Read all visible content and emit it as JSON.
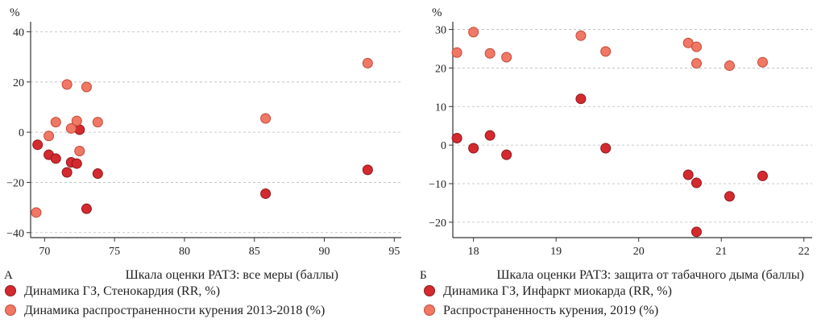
{
  "colors": {
    "dark": "#d42a2f",
    "light": "#f07864",
    "grid": "#bbbbbb"
  },
  "chart_data": [
    {
      "type": "scatter",
      "panel_label": "А",
      "ylabel": "%",
      "xlabel": "Шкала оценки РАТЗ: все меры (баллы)",
      "xlim": [
        69,
        95.5
      ],
      "ylim": [
        -42,
        44
      ],
      "xticks": [
        70,
        75,
        80,
        85,
        90,
        95
      ],
      "yticks": [
        -40,
        -20,
        0,
        20,
        40
      ],
      "series": [
        {
          "name": "Динамика ГЗ, Стенокардия (RR, %)",
          "color": "dark",
          "points": [
            [
              69.5,
              -5
            ],
            [
              70.3,
              -9
            ],
            [
              70.8,
              -10.5
            ],
            [
              71.6,
              -16
            ],
            [
              71.9,
              -12
            ],
            [
              72.3,
              -12.5
            ],
            [
              72.5,
              1
            ],
            [
              73.0,
              -30.5
            ],
            [
              73.8,
              -16.5
            ],
            [
              85.8,
              -24.5
            ],
            [
              93.1,
              -15
            ]
          ]
        },
        {
          "name": "Динамика распространенности курения 2013-2018 (%)",
          "color": "light",
          "points": [
            [
              69.4,
              -32
            ],
            [
              70.3,
              -1.5
            ],
            [
              70.8,
              4
            ],
            [
              71.6,
              19
            ],
            [
              71.9,
              1.5
            ],
            [
              72.3,
              4.5
            ],
            [
              72.5,
              -7.5
            ],
            [
              73.0,
              18
            ],
            [
              73.8,
              4
            ],
            [
              85.8,
              5.5
            ],
            [
              93.1,
              27.5
            ]
          ]
        }
      ]
    },
    {
      "type": "scatter",
      "panel_label": "Б",
      "ylabel": "%",
      "xlabel": "Шкала оценки РАТЗ: защита от табачного дыма (баллы)",
      "xlim": [
        17.75,
        22.1
      ],
      "ylim": [
        -24,
        32
      ],
      "xticks": [
        18,
        19,
        20,
        21,
        22
      ],
      "yticks": [
        -20,
        -10,
        0,
        10,
        20,
        30
      ],
      "series": [
        {
          "name": "Динамика ГЗ, Инфаркт миокарда (RR, %)",
          "color": "dark",
          "points": [
            [
              17.8,
              1.8
            ],
            [
              18.0,
              -0.8
            ],
            [
              18.2,
              2.5
            ],
            [
              18.4,
              -2.5
            ],
            [
              19.3,
              12
            ],
            [
              19.6,
              -0.8
            ],
            [
              20.6,
              -7.7
            ],
            [
              20.7,
              -9.8
            ],
            [
              20.7,
              -22.5
            ],
            [
              21.1,
              -13.3
            ],
            [
              21.5,
              -8
            ]
          ]
        },
        {
          "name": "Распространенность курения, 2019 (%)",
          "color": "light",
          "points": [
            [
              17.8,
              24
            ],
            [
              18.0,
              29.3
            ],
            [
              18.2,
              23.8
            ],
            [
              18.4,
              22.8
            ],
            [
              19.3,
              28.4
            ],
            [
              19.6,
              24.3
            ],
            [
              20.6,
              26.5
            ],
            [
              20.7,
              25.5
            ],
            [
              20.7,
              21.2
            ],
            [
              21.1,
              20.6
            ],
            [
              21.5,
              21.5
            ]
          ]
        }
      ]
    }
  ]
}
